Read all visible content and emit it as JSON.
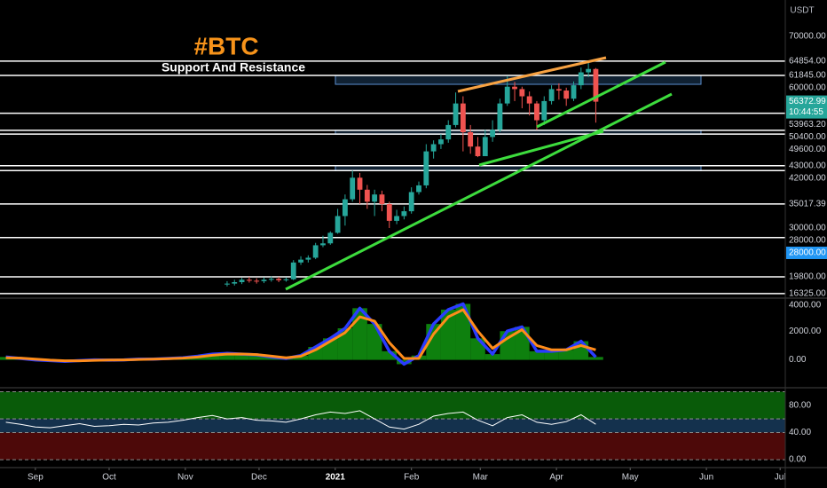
{
  "chart_data": [
    {
      "type": "candlestick",
      "title": "#BTC",
      "subtitle": "Support And Resistance",
      "unit": "USDT",
      "countdown": "10:44:55",
      "xlim": [
        -14.4,
        305.1
      ],
      "ylim": [
        15550,
        77600
      ],
      "up_color": "#26a69a",
      "down_color": "#ef5350",
      "level_color": "#ffffff",
      "zone_color": "#2f5f8f",
      "x": [
        78,
        81,
        84,
        87,
        90,
        93,
        96,
        99,
        102,
        105,
        108,
        111,
        114,
        117,
        120,
        123,
        126,
        129,
        132,
        135,
        138,
        141,
        144,
        147,
        150,
        153,
        156,
        159,
        162,
        165,
        168,
        171,
        174,
        177,
        180,
        183,
        186,
        189,
        192,
        195,
        198,
        201,
        204,
        207,
        210,
        213,
        216,
        219,
        222,
        225,
        228
      ],
      "open": [
        18200,
        18400,
        18700,
        19200,
        19000,
        18900,
        19200,
        19400,
        19100,
        19300,
        22800,
        23400,
        23800,
        26400,
        26800,
        29000,
        32500,
        36000,
        40500,
        38000,
        35500,
        37000,
        35000,
        31500,
        32500,
        33500,
        37500,
        38900,
        46000,
        47500,
        48500,
        51500,
        56000,
        50000,
        47000,
        45000,
        49000,
        50500,
        56000,
        59500,
        59000,
        57500,
        56000,
        52500,
        56500,
        59000,
        58700,
        57000,
        59800,
        62500,
        63200
      ],
      "high": [
        18900,
        19200,
        19600,
        19800,
        19500,
        19700,
        19900,
        19800,
        19700,
        23300,
        24100,
        24300,
        26900,
        28400,
        29300,
        34000,
        37000,
        42000,
        41500,
        39000,
        38000,
        37800,
        35500,
        33800,
        34500,
        38500,
        39700,
        47500,
        48300,
        49600,
        52500,
        58300,
        57500,
        51500,
        49000,
        50500,
        52500,
        57000,
        61700,
        60500,
        59500,
        58500,
        56500,
        57500,
        59800,
        60200,
        59300,
        60600,
        63500,
        64800,
        63400
      ],
      "low": [
        17800,
        18000,
        18300,
        18600,
        18400,
        18500,
        18800,
        18700,
        18800,
        19100,
        22300,
        22800,
        23500,
        26000,
        26500,
        28800,
        30500,
        35500,
        35000,
        34000,
        32500,
        33500,
        30000,
        30800,
        31800,
        33000,
        37000,
        38300,
        44500,
        46500,
        47800,
        51000,
        46000,
        45500,
        44800,
        45000,
        48000,
        50000,
        55500,
        56500,
        55000,
        53500,
        50500,
        51500,
        55800,
        56800,
        55500,
        56500,
        59000,
        61500,
        52000
      ],
      "close": [
        18400,
        18700,
        19200,
        19000,
        18900,
        19200,
        19400,
        19100,
        19300,
        22800,
        23400,
        23800,
        26400,
        26800,
        29000,
        32500,
        36000,
        40500,
        38000,
        35500,
        37000,
        35000,
        31500,
        32500,
        33500,
        37500,
        38900,
        46000,
        47500,
        48500,
        51500,
        56000,
        50000,
        47000,
        45000,
        49000,
        50500,
        56000,
        59500,
        59000,
        57500,
        56000,
        52500,
        56500,
        59000,
        58700,
        57000,
        59800,
        62500,
        63200,
        56372.99
      ],
      "yticks": [
        {
          "value": 70000,
          "label": "70000.00"
        },
        {
          "value": 60000,
          "label": "60000.00"
        },
        {
          "value": 30000,
          "label": "30000.00"
        }
      ],
      "levels": [
        {
          "value": 64854,
          "label": "64854.00"
        },
        {
          "value": 61845,
          "label": "61845.00"
        },
        {
          "value": 53963.2,
          "label": "53963.20"
        },
        {
          "value": 50400,
          "label": "50400.00"
        },
        {
          "value": 49600,
          "label": "49600.00"
        },
        {
          "value": 43000,
          "label": "43000.00"
        },
        {
          "value": 42000,
          "label": "42000.00"
        },
        {
          "value": 35017.39,
          "label": "35017.39"
        },
        {
          "value": 28000,
          "label": "28000.00"
        },
        {
          "value": 19800,
          "label": "19800.00"
        },
        {
          "value": 16325,
          "label": "16325.00"
        }
      ],
      "zones": [
        [
          60000,
          61845
        ],
        [
          49600,
          50400
        ],
        [
          42000,
          43000
        ]
      ],
      "highlight": {
        "value": 28000,
        "label": "28000.00",
        "color": "#2196f3"
      }
    },
    {
      "type": "histogram",
      "xlim": [
        -14.4,
        305.1
      ],
      "ylim": [
        -1880,
        4240
      ],
      "yticks": [
        {
          "value": 4000,
          "label": "4000.00"
        },
        {
          "value": 2000,
          "label": "2000.00"
        },
        {
          "value": 0,
          "label": "0.00"
        }
      ],
      "x": [
        -12,
        -6,
        0,
        6,
        12,
        18,
        24,
        30,
        36,
        42,
        48,
        54,
        60,
        66,
        72,
        78,
        84,
        90,
        96,
        102,
        108,
        114,
        120,
        126,
        132,
        138,
        144,
        150,
        156,
        162,
        168,
        174,
        180,
        186,
        192,
        198,
        204,
        210,
        216,
        222,
        228
      ],
      "series": [
        {
          "color": "#12a012",
          "outline_color": "#2a3cff",
          "values": [
            200,
            100,
            0,
            -50,
            -100,
            -50,
            0,
            -20,
            0,
            50,
            50,
            100,
            150,
            250,
            400,
            450,
            400,
            350,
            200,
            100,
            300,
            900,
            1500,
            2200,
            3600,
            2500,
            600,
            -300,
            300,
            2500,
            3500,
            3900,
            1500,
            400,
            2000,
            2300,
            600,
            600,
            700,
            1300,
            200
          ]
        },
        {
          "color": "#ff8c1a",
          "values": [
            150,
            120,
            50,
            -20,
            -60,
            -60,
            -30,
            -10,
            0,
            30,
            50,
            80,
            120,
            200,
            320,
            400,
            410,
            370,
            260,
            150,
            250,
            700,
            1300,
            1900,
            3000,
            2700,
            1200,
            100,
            100,
            1800,
            3000,
            3500,
            2000,
            800,
            1500,
            2100,
            1000,
            700,
            700,
            1000,
            700
          ]
        }
      ]
    },
    {
      "type": "line",
      "xlim": [
        -14.4,
        305.1
      ],
      "ylim": [
        -10.3,
        104.5
      ],
      "yticks": [
        {
          "value": 80,
          "label": "80.00"
        },
        {
          "value": 40,
          "label": "40.00"
        },
        {
          "value": 0,
          "label": "0.00"
        }
      ],
      "bands": [
        {
          "from": 60,
          "to": 100,
          "color": "#0b6b0b"
        },
        {
          "from": 40,
          "to": 60,
          "color": "#173a5a"
        },
        {
          "from": 0,
          "to": 40,
          "color": "#5a0a0a"
        }
      ],
      "x": [
        -12,
        -6,
        0,
        6,
        12,
        18,
        24,
        30,
        36,
        42,
        48,
        54,
        60,
        66,
        72,
        78,
        84,
        90,
        96,
        102,
        108,
        114,
        120,
        126,
        132,
        138,
        144,
        150,
        156,
        162,
        168,
        174,
        180,
        186,
        192,
        198,
        204,
        210,
        216,
        222,
        228
      ],
      "series": [
        {
          "color": "#ffffff",
          "values": [
            55,
            52,
            48,
            47,
            50,
            53,
            49,
            50,
            52,
            51,
            54,
            55,
            58,
            62,
            65,
            60,
            62,
            58,
            57,
            55,
            60,
            66,
            70,
            68,
            72,
            60,
            48,
            45,
            52,
            64,
            68,
            70,
            58,
            50,
            62,
            66,
            55,
            52,
            56,
            66,
            52
          ]
        }
      ],
      "xticks": [
        {
          "value": 0,
          "label": "Sep"
        },
        {
          "value": 30,
          "label": "Oct"
        },
        {
          "value": 61,
          "label": "Nov"
        },
        {
          "value": 91,
          "label": "Dec"
        },
        {
          "value": 122,
          "label": "2021"
        },
        {
          "value": 153,
          "label": "Feb"
        },
        {
          "value": 181,
          "label": "Mar"
        },
        {
          "value": 212,
          "label": "Apr"
        },
        {
          "value": 242,
          "label": "May"
        },
        {
          "value": 273,
          "label": "Jun"
        },
        {
          "value": 303,
          "label": "Jul"
        }
      ]
    }
  ]
}
